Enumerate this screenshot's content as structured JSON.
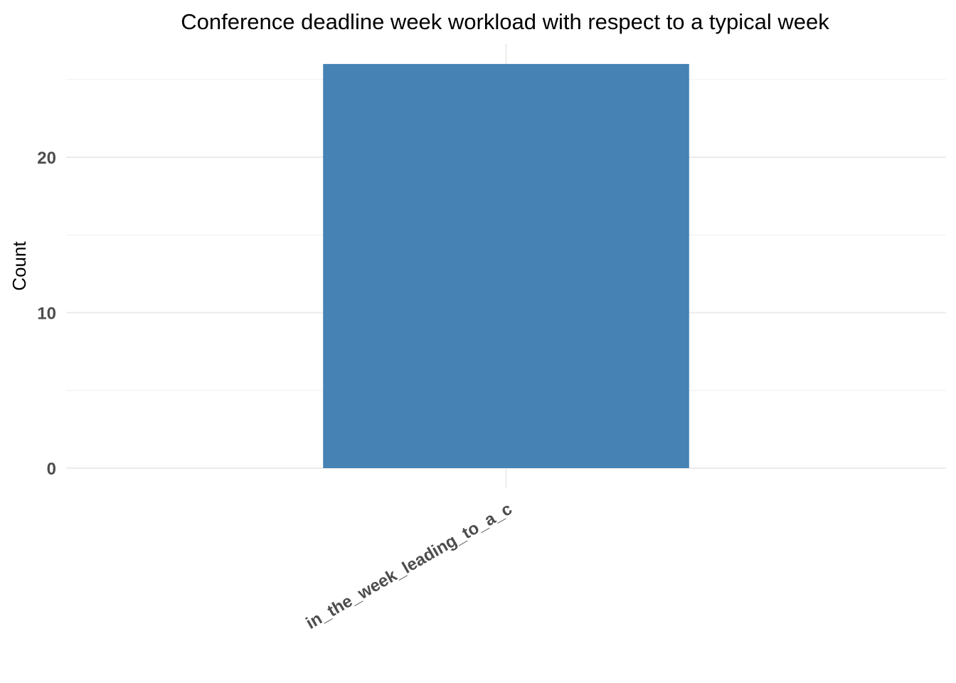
{
  "chart_data": {
    "type": "bar",
    "title": "Conference deadline week workload with respect to a typical week",
    "xlabel": "",
    "ylabel": "Count",
    "categories": [
      "in_the_week_leading_to_a_c"
    ],
    "values": [
      26
    ],
    "ylim": [
      0,
      28
    ],
    "yticks": [
      0,
      10,
      20
    ],
    "ytick_labels": [
      "0",
      "10",
      "20"
    ],
    "grid": true,
    "legend": "none",
    "bar_color": "#4682b4"
  }
}
